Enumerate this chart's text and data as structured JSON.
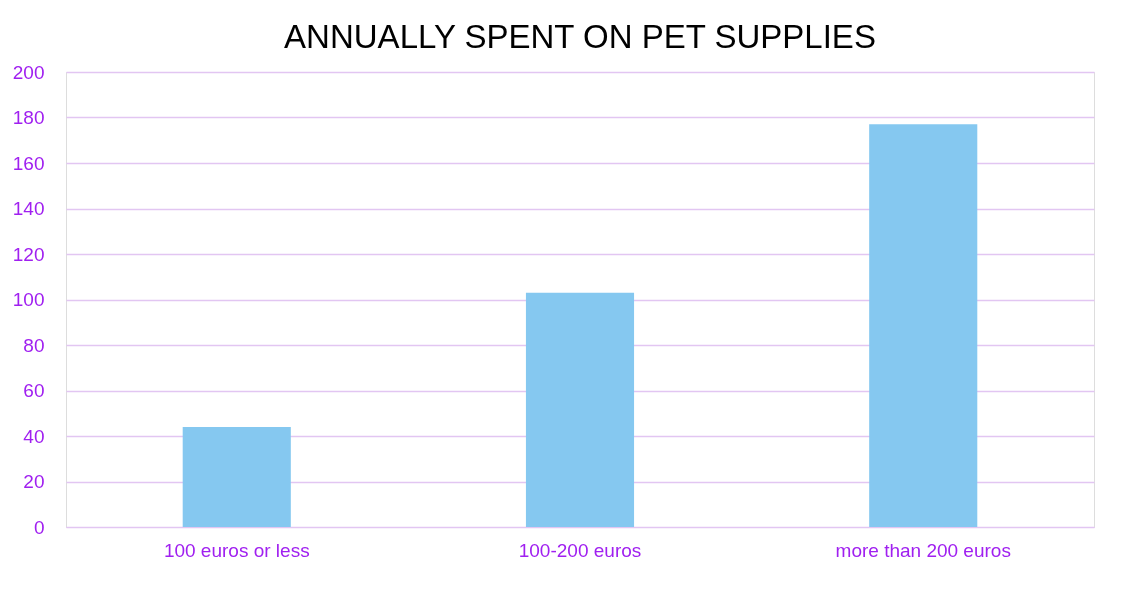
{
  "chart_data": {
    "type": "bar",
    "title": "ANNUALLY SPENT ON PET SUPPLIES",
    "categories": [
      "100 euros or less",
      "100-200 euros",
      "more than 200 euros"
    ],
    "values": [
      44,
      103,
      177
    ],
    "color": "#85c8f0",
    "ylim": [
      0,
      200
    ],
    "yticks": [
      0,
      20,
      40,
      60,
      80,
      100,
      120,
      140,
      160,
      180,
      200
    ],
    "grid": "y"
  }
}
